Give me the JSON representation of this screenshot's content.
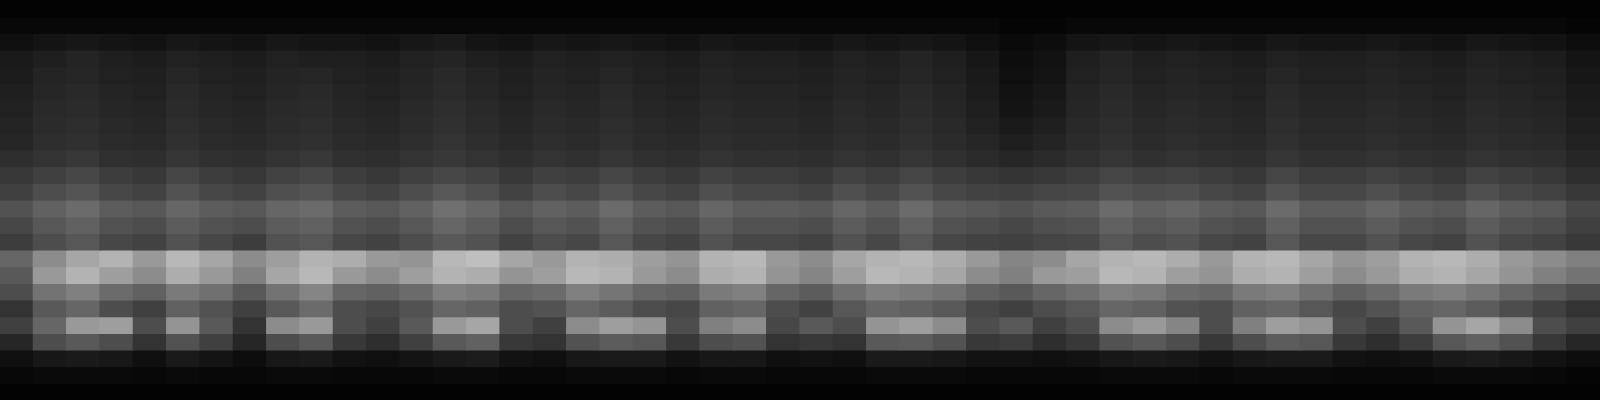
{
  "chart_data": {
    "type": "heatmap",
    "tick_labels": false,
    "grid": false,
    "color": "#ffffff",
    "value_range": [
      0,
      100
    ],
    "cells": [
      [
        1,
        1,
        1,
        1,
        1,
        1,
        1,
        1,
        1,
        1,
        1,
        1,
        1,
        1,
        1,
        1,
        1,
        1,
        1,
        1,
        1,
        1,
        1,
        1,
        1,
        1,
        1,
        1,
        1,
        1,
        1,
        1,
        1,
        1,
        1,
        1,
        1,
        1,
        1,
        1,
        1,
        1,
        1,
        1,
        1,
        1,
        1,
        1
      ],
      [
        3,
        3,
        3,
        3,
        3,
        3,
        3,
        3,
        3,
        3,
        3,
        3,
        3,
        3,
        3,
        3,
        3,
        3,
        3,
        3,
        3,
        3,
        3,
        3,
        3,
        3,
        3,
        3,
        3,
        3,
        2,
        2,
        3,
        3,
        3,
        3,
        3,
        3,
        3,
        3,
        3,
        3,
        3,
        3,
        3,
        3,
        3,
        2
      ],
      [
        6,
        8,
        9,
        8,
        7,
        9,
        8,
        7,
        9,
        8,
        8,
        7,
        9,
        10,
        8,
        7,
        9,
        8,
        9,
        8,
        7,
        9,
        8,
        8,
        7,
        9,
        8,
        9,
        8,
        6,
        4,
        5,
        8,
        9,
        8,
        9,
        8,
        7,
        9,
        8,
        8,
        9,
        8,
        7,
        9,
        8,
        7,
        5
      ],
      [
        10,
        12,
        14,
        12,
        11,
        13,
        12,
        11,
        13,
        12,
        12,
        11,
        13,
        14,
        12,
        11,
        13,
        12,
        13,
        12,
        11,
        13,
        12,
        12,
        11,
        13,
        12,
        14,
        12,
        9,
        5,
        7,
        12,
        14,
        12,
        13,
        12,
        11,
        13,
        12,
        12,
        13,
        12,
        11,
        13,
        12,
        11,
        8
      ],
      [
        11,
        14,
        15,
        13,
        12,
        15,
        13,
        12,
        14,
        15,
        13,
        12,
        14,
        16,
        14,
        12,
        14,
        13,
        15,
        13,
        12,
        14,
        13,
        13,
        12,
        14,
        13,
        15,
        13,
        10,
        6,
        8,
        13,
        15,
        13,
        14,
        13,
        12,
        15,
        13,
        13,
        14,
        13,
        12,
        14,
        13,
        12,
        9
      ],
      [
        12,
        15,
        16,
        14,
        13,
        16,
        14,
        13,
        15,
        16,
        14,
        13,
        15,
        17,
        15,
        13,
        15,
        14,
        16,
        14,
        13,
        15,
        14,
        14,
        13,
        15,
        14,
        16,
        14,
        11,
        7,
        9,
        14,
        16,
        14,
        15,
        14,
        13,
        16,
        14,
        14,
        15,
        14,
        13,
        15,
        14,
        13,
        10
      ],
      [
        13,
        16,
        17,
        15,
        14,
        17,
        15,
        14,
        16,
        17,
        15,
        14,
        16,
        18,
        16,
        14,
        16,
        15,
        17,
        15,
        14,
        16,
        15,
        15,
        14,
        16,
        15,
        17,
        15,
        12,
        8,
        10,
        15,
        17,
        15,
        16,
        15,
        14,
        17,
        15,
        15,
        16,
        15,
        14,
        16,
        15,
        14,
        11
      ],
      [
        14,
        17,
        18,
        16,
        15,
        18,
        16,
        15,
        17,
        18,
        16,
        15,
        17,
        19,
        17,
        15,
        17,
        16,
        18,
        16,
        15,
        17,
        16,
        16,
        15,
        17,
        16,
        18,
        16,
        13,
        10,
        12,
        16,
        18,
        16,
        17,
        16,
        15,
        18,
        16,
        16,
        17,
        16,
        15,
        17,
        16,
        15,
        12
      ],
      [
        15,
        18,
        19,
        17,
        16,
        19,
        17,
        16,
        18,
        19,
        17,
        16,
        18,
        20,
        18,
        16,
        18,
        17,
        19,
        17,
        16,
        18,
        17,
        17,
        16,
        18,
        17,
        19,
        17,
        15,
        12,
        14,
        17,
        19,
        17,
        18,
        17,
        16,
        19,
        17,
        17,
        18,
        17,
        16,
        18,
        17,
        16,
        13
      ],
      [
        18,
        20,
        22,
        19,
        18,
        21,
        19,
        18,
        20,
        22,
        19,
        18,
        20,
        22,
        20,
        18,
        20,
        19,
        21,
        19,
        18,
        20,
        19,
        19,
        18,
        20,
        19,
        21,
        19,
        17,
        15,
        17,
        19,
        21,
        19,
        20,
        19,
        18,
        21,
        19,
        19,
        20,
        19,
        18,
        20,
        19,
        18,
        15
      ],
      [
        22,
        25,
        28,
        24,
        22,
        27,
        24,
        22,
        26,
        28,
        24,
        22,
        25,
        28,
        26,
        22,
        25,
        24,
        27,
        24,
        22,
        26,
        24,
        24,
        22,
        26,
        24,
        27,
        24,
        22,
        20,
        22,
        24,
        27,
        25,
        26,
        24,
        22,
        27,
        24,
        24,
        26,
        24,
        22,
        26,
        24,
        22,
        18
      ],
      [
        25,
        30,
        33,
        28,
        26,
        32,
        28,
        26,
        31,
        33,
        28,
        26,
        30,
        34,
        31,
        26,
        30,
        28,
        32,
        28,
        26,
        31,
        28,
        28,
        26,
        31,
        28,
        32,
        28,
        26,
        25,
        27,
        28,
        32,
        30,
        31,
        28,
        26,
        32,
        28,
        28,
        31,
        28,
        26,
        31,
        28,
        26,
        22
      ],
      [
        32,
        38,
        42,
        36,
        34,
        40,
        36,
        34,
        40,
        42,
        36,
        34,
        38,
        44,
        40,
        34,
        38,
        36,
        42,
        36,
        34,
        40,
        36,
        36,
        34,
        40,
        36,
        42,
        36,
        34,
        32,
        35,
        36,
        42,
        38,
        40,
        36,
        34,
        42,
        36,
        36,
        40,
        36,
        34,
        40,
        36,
        34,
        28
      ],
      [
        28,
        34,
        38,
        32,
        30,
        36,
        32,
        30,
        36,
        38,
        32,
        30,
        34,
        40,
        36,
        30,
        34,
        32,
        38,
        32,
        30,
        36,
        32,
        32,
        30,
        36,
        32,
        38,
        32,
        30,
        28,
        31,
        32,
        38,
        34,
        36,
        32,
        30,
        38,
        32,
        32,
        36,
        32,
        30,
        36,
        32,
        30,
        25
      ],
      [
        24,
        30,
        34,
        28,
        26,
        32,
        28,
        24,
        32,
        34,
        28,
        26,
        30,
        35,
        32,
        26,
        30,
        28,
        34,
        28,
        26,
        32,
        28,
        28,
        26,
        32,
        28,
        34,
        28,
        26,
        25,
        27,
        28,
        34,
        30,
        32,
        28,
        26,
        34,
        28,
        28,
        32,
        28,
        26,
        32,
        28,
        26,
        22
      ],
      [
        40,
        55,
        65,
        70,
        60,
        72,
        65,
        55,
        62,
        70,
        68,
        60,
        58,
        72,
        75,
        65,
        60,
        70,
        68,
        62,
        58,
        70,
        72,
        60,
        55,
        65,
        70,
        72,
        68,
        60,
        52,
        55,
        65,
        70,
        72,
        68,
        60,
        70,
        72,
        65,
        58,
        62,
        70,
        72,
        68,
        60,
        55,
        50
      ],
      [
        35,
        60,
        70,
        62,
        55,
        68,
        60,
        50,
        65,
        72,
        60,
        55,
        62,
        70,
        68,
        58,
        62,
        72,
        70,
        60,
        55,
        68,
        70,
        58,
        52,
        62,
        72,
        70,
        65,
        55,
        50,
        60,
        62,
        72,
        70,
        62,
        58,
        68,
        70,
        62,
        55,
        60,
        68,
        70,
        65,
        58,
        50,
        45
      ],
      [
        30,
        45,
        50,
        42,
        38,
        48,
        44,
        35,
        45,
        52,
        40,
        38,
        42,
        50,
        48,
        40,
        42,
        50,
        46,
        40,
        38,
        48,
        50,
        40,
        36,
        44,
        50,
        48,
        45,
        38,
        35,
        40,
        44,
        50,
        48,
        42,
        40,
        48,
        50,
        44,
        38,
        42,
        48,
        50,
        46,
        40,
        35,
        30
      ],
      [
        20,
        35,
        40,
        30,
        25,
        38,
        32,
        25,
        35,
        42,
        30,
        28,
        32,
        40,
        38,
        30,
        32,
        40,
        36,
        30,
        28,
        38,
        40,
        30,
        26,
        34,
        40,
        38,
        35,
        28,
        25,
        30,
        34,
        40,
        38,
        32,
        30,
        38,
        40,
        34,
        28,
        32,
        38,
        40,
        36,
        30,
        25,
        20
      ],
      [
        25,
        40,
        60,
        62,
        30,
        58,
        35,
        20,
        55,
        60,
        30,
        25,
        35,
        60,
        65,
        30,
        25,
        55,
        62,
        58,
        30,
        50,
        55,
        28,
        35,
        30,
        58,
        62,
        55,
        30,
        35,
        25,
        30,
        55,
        60,
        52,
        30,
        50,
        62,
        58,
        30,
        25,
        35,
        58,
        65,
        55,
        30,
        25
      ],
      [
        15,
        30,
        35,
        30,
        20,
        32,
        25,
        15,
        30,
        35,
        22,
        18,
        25,
        35,
        38,
        22,
        20,
        32,
        36,
        34,
        22,
        30,
        32,
        20,
        22,
        20,
        35,
        36,
        32,
        22,
        24,
        18,
        22,
        32,
        35,
        30,
        22,
        30,
        36,
        34,
        22,
        18,
        24,
        34,
        38,
        32,
        22,
        15
      ],
      [
        6,
        9,
        10,
        9,
        6,
        10,
        8,
        5,
        9,
        10,
        7,
        6,
        8,
        10,
        11,
        7,
        6,
        9,
        10,
        10,
        7,
        9,
        9,
        6,
        7,
        6,
        10,
        10,
        9,
        7,
        7,
        6,
        7,
        9,
        10,
        9,
        7,
        9,
        10,
        10,
        7,
        6,
        7,
        10,
        11,
        9,
        7,
        5
      ],
      [
        3,
        4,
        4,
        4,
        3,
        4,
        3,
        3,
        4,
        4,
        3,
        3,
        3,
        4,
        4,
        3,
        3,
        4,
        4,
        4,
        3,
        4,
        4,
        3,
        3,
        3,
        4,
        4,
        4,
        3,
        3,
        3,
        3,
        4,
        4,
        4,
        3,
        4,
        4,
        4,
        3,
        3,
        3,
        4,
        4,
        4,
        3,
        2
      ],
      [
        1,
        1,
        1,
        1,
        1,
        1,
        1,
        1,
        1,
        1,
        1,
        1,
        1,
        1,
        1,
        1,
        1,
        1,
        1,
        1,
        1,
        1,
        1,
        1,
        1,
        1,
        1,
        1,
        1,
        1,
        1,
        1,
        1,
        1,
        1,
        1,
        1,
        1,
        1,
        1,
        1,
        1,
        1,
        1,
        1,
        1,
        1,
        1
      ]
    ]
  }
}
